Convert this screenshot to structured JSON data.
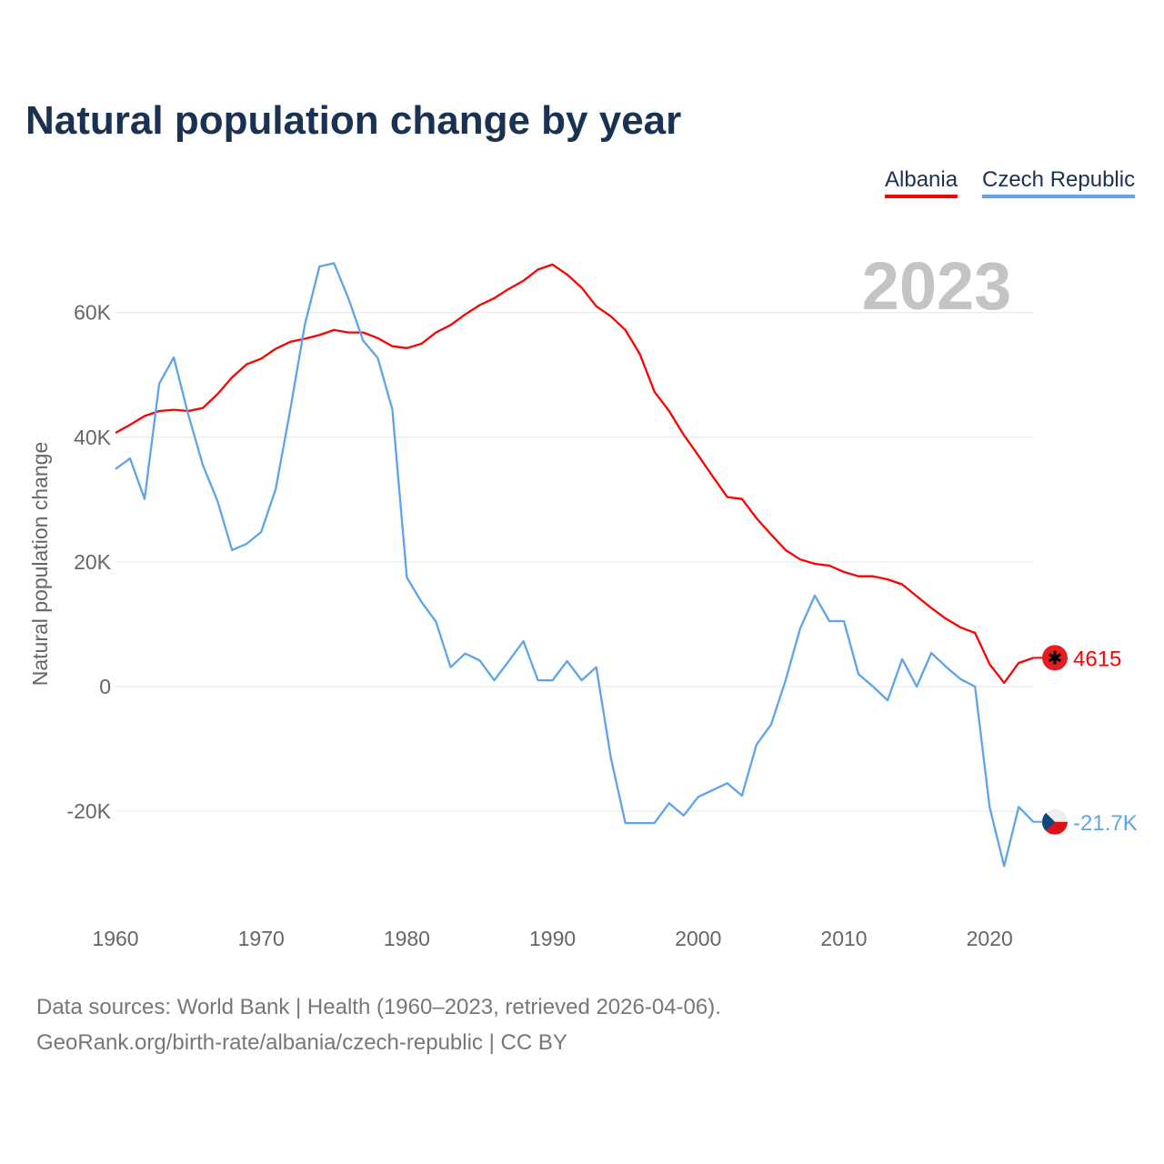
{
  "chart_data": {
    "type": "line",
    "title": "Natural population change by year",
    "xlabel": "",
    "ylabel": "Natural population change",
    "xlim": [
      1960,
      2023
    ],
    "ylim": [
      -30000,
      70000
    ],
    "yticks": [
      {
        "v": -20000,
        "label": "-20K"
      },
      {
        "v": 0,
        "label": "0"
      },
      {
        "v": 20000,
        "label": "20K"
      },
      {
        "v": 40000,
        "label": "40K"
      },
      {
        "v": 60000,
        "label": "60K"
      }
    ],
    "xticks": [
      {
        "v": 1960,
        "label": "1960"
      },
      {
        "v": 1970,
        "label": "1970"
      },
      {
        "v": 1980,
        "label": "1980"
      },
      {
        "v": 1990,
        "label": "1990"
      },
      {
        "v": 2000,
        "label": "2000"
      },
      {
        "v": 2010,
        "label": "2010"
      },
      {
        "v": 2020,
        "label": "2020"
      }
    ],
    "grid": true,
    "legend_placement": "top-right",
    "year_watermark": "2023",
    "x_start": 1960,
    "series": [
      {
        "name": "Albania",
        "color": "#ff0000",
        "end_label": "4615",
        "flag": "albania-flag",
        "values": [
          40700,
          42000,
          43400,
          44200,
          44400,
          44200,
          44700,
          46900,
          49600,
          51700,
          52600,
          54200,
          55300,
          55800,
          56400,
          57200,
          56800,
          56800,
          55900,
          54600,
          54300,
          55000,
          56800,
          58000,
          59700,
          61200,
          62300,
          63800,
          65100,
          66900,
          67700,
          66100,
          64000,
          61000,
          59400,
          57200,
          53300,
          47300,
          44200,
          40400,
          37100,
          33700,
          30400,
          30100,
          27000,
          24400,
          21900,
          20400,
          19700,
          19400,
          18400,
          17700,
          17700,
          17200,
          16400,
          14500,
          12600,
          10900,
          9500,
          8600,
          3600,
          600,
          3800,
          4615
        ]
      },
      {
        "name": "Czech Republic",
        "color": "#5ea4ea",
        "end_label": "-21.7K",
        "flag": "czech-flag",
        "values": [
          34900,
          36600,
          30100,
          48600,
          52800,
          43600,
          35500,
          29800,
          21900,
          22900,
          24800,
          31700,
          44400,
          58100,
          67400,
          67900,
          62200,
          55500,
          52700,
          44500,
          17500,
          13600,
          10400,
          3100,
          5300,
          4200,
          1000,
          4100,
          7300,
          1000,
          1000,
          4100,
          1000,
          3100,
          -11400,
          -21900,
          -21900,
          -21900,
          -18700,
          -20700,
          -17700,
          -16600,
          -15500,
          -17500,
          -9300,
          -6100,
          1000,
          9300,
          14600,
          10500,
          10500,
          2000,
          0,
          -2200,
          4400,
          0,
          5400,
          3200,
          1200,
          0,
          -19300,
          -28800,
          -19300,
          -21700
        ]
      }
    ]
  },
  "source": {
    "line1": "Data sources: World Bank | Health (1960–2023, retrieved 2026-04-06).",
    "line2": "GeoRank.org/birth-rate/albania/czech-republic | CC BY"
  }
}
